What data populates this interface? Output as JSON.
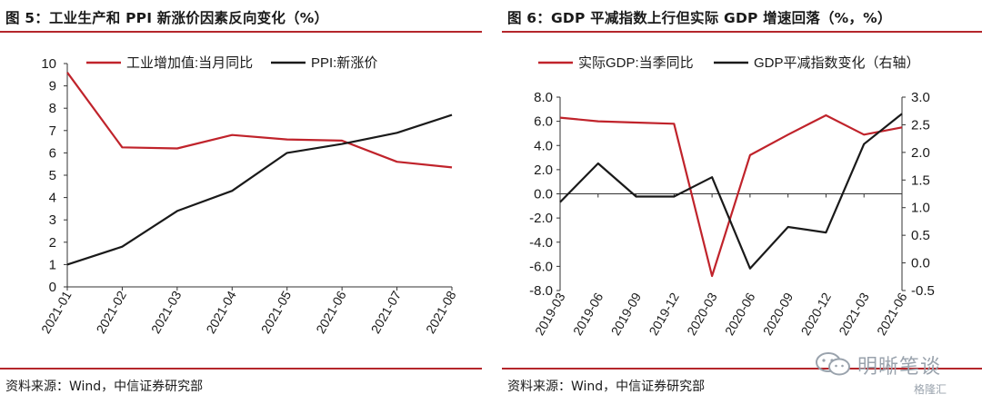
{
  "figures": [
    {
      "title": "图 5：工业生产和 PPI 新涨价因素反向变化（%）",
      "source": "资料来源：Wind，中信证券研究部"
    },
    {
      "title": "图 6：GDP 平减指数上行但实际 GDP 增速回落（%，%）",
      "source": "资料来源：Wind，中信证券研究部"
    }
  ],
  "watermark": {
    "text": "明晰笔谈",
    "badge": "格隆汇"
  },
  "colors": {
    "red": "#c0232b",
    "black": "#1a1a1a",
    "rule": "#b4262b"
  },
  "chart_data": [
    {
      "type": "line",
      "categories": [
        "2021-01",
        "2021-02",
        "2021-03",
        "2021-04",
        "2021-05",
        "2021-06",
        "2021-07",
        "2021-08"
      ],
      "series": [
        {
          "name": "工业增加值:当月同比",
          "color": "#c0232b",
          "values": [
            9.6,
            6.25,
            6.2,
            6.8,
            6.6,
            6.55,
            5.6,
            5.35
          ]
        },
        {
          "name": "PPI:新涨价",
          "color": "#1a1a1a",
          "values": [
            1.0,
            1.8,
            3.4,
            4.3,
            6.0,
            6.4,
            6.9,
            7.7
          ]
        }
      ],
      "ylim": [
        0,
        10
      ],
      "yticks": [
        "0",
        "1",
        "2",
        "3",
        "4",
        "5",
        "6",
        "7",
        "8",
        "9",
        "10"
      ],
      "grid": false,
      "legend": "top"
    },
    {
      "type": "line",
      "categories": [
        "2019-03",
        "2019-06",
        "2019-09",
        "2019-12",
        "2020-03",
        "2020-06",
        "2020-09",
        "2020-12",
        "2021-03",
        "2021-06"
      ],
      "series": [
        {
          "name": "实际GDP:当季同比",
          "color": "#c0232b",
          "axis": "left",
          "values": [
            6.3,
            6.0,
            5.9,
            5.8,
            -6.8,
            3.2,
            4.9,
            6.5,
            4.9,
            5.5
          ]
        },
        {
          "name": "GDP平减指数变化（右轴）",
          "color": "#1a1a1a",
          "axis": "right",
          "values": [
            1.1,
            1.8,
            1.2,
            1.2,
            1.55,
            -0.1,
            0.65,
            0.55,
            2.15,
            2.7
          ]
        }
      ],
      "ylim_left": [
        -8,
        8
      ],
      "yticks_left": [
        "-8.0",
        "-6.0",
        "-4.0",
        "-2.0",
        "0.0",
        "2.0",
        "4.0",
        "6.0",
        "8.0"
      ],
      "ylim_right": [
        -0.5,
        3.0
      ],
      "yticks_right": [
        "-0.5",
        "0.0",
        "0.5",
        "1.0",
        "1.5",
        "2.0",
        "2.5",
        "3.0"
      ],
      "grid": false,
      "legend": "top"
    }
  ]
}
